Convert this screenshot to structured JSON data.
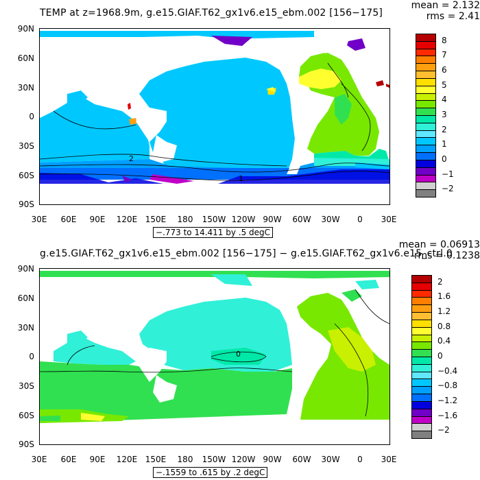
{
  "panels": [
    {
      "id": "top",
      "title": "TEMP at z=1968.9m, g.e15.GIAF.T62_gx1v6.e15_ebm.002 [156−175]",
      "mean_text": "mean = 2.132",
      "rms_text": "rms = 2.41",
      "range_text": "−.773 to 14.411 by .5 degC",
      "lat_labels": [
        "90N",
        "60N",
        "30N",
        "0",
        "30S",
        "60S",
        "90S"
      ],
      "lon_labels": [
        "30E",
        "60E",
        "90E",
        "120E",
        "150E",
        "180",
        "150W",
        "120W",
        "90W",
        "60W",
        "30W",
        "0",
        "30E"
      ],
      "colorbar": {
        "labels": [
          "8",
          "7",
          "6",
          "5",
          "4",
          "3",
          "2",
          "1",
          "0",
          "−1",
          "−2"
        ],
        "colors": [
          "#b40000",
          "#e60000",
          "#ff2a00",
          "#ff7f00",
          "#ff9f10",
          "#ffbf30",
          "#ffdf00",
          "#ffff30",
          "#c8f000",
          "#78e800",
          "#30e050",
          "#00e8a8",
          "#30f0d8",
          "#60e8ff",
          "#00c8ff",
          "#00a0ff",
          "#0070ff",
          "#0000e0",
          "#7000c8",
          "#c000c8",
          "#d0d0d0",
          "#808080"
        ]
      },
      "contour_labels": [
        "2",
        "1"
      ]
    },
    {
      "id": "bottom",
      "title": "g.e15.GIAF.T62_gx1v6.e15_ebm.002 [156−175] − g.e15.GIAF.T62_gx1v6.e15_ctrl.0",
      "mean_text": "mean = 0.06913",
      "rms_text": "rms = 0.1238",
      "range_text": "−.1559 to .615 by .2 degC",
      "lat_labels": [
        "90N",
        "60N",
        "30N",
        "0",
        "30S",
        "60S",
        "90S"
      ],
      "lon_labels": [
        "30E",
        "60E",
        "90E",
        "120E",
        "150E",
        "180",
        "150W",
        "120W",
        "90W",
        "60W",
        "30W",
        "0",
        "30E"
      ],
      "colorbar": {
        "labels": [
          "2",
          "1.6",
          "1.2",
          "0.8",
          "0.4",
          "0",
          "−0.4",
          "−0.8",
          "−1.2",
          "−1.6",
          "−2"
        ],
        "colors": [
          "#b40000",
          "#e60000",
          "#ff2a00",
          "#ff7f00",
          "#ff9f10",
          "#ffbf30",
          "#ffdf00",
          "#ffff30",
          "#c8f000",
          "#78e800",
          "#30e050",
          "#00e8a8",
          "#30f0d8",
          "#60e8ff",
          "#00c8ff",
          "#00a0ff",
          "#0070ff",
          "#0000e0",
          "#7000c8",
          "#c000c8",
          "#d0d0d0",
          "#808080"
        ]
      },
      "contour_labels": [
        "0"
      ]
    }
  ]
}
